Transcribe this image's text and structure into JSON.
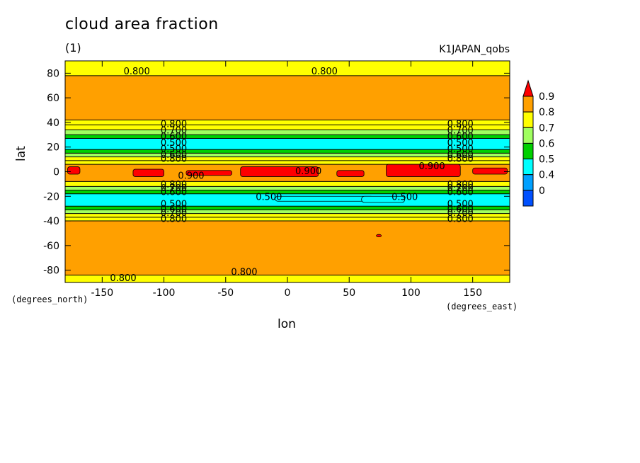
{
  "chart_data": {
    "type": "heatmap",
    "title": "cloud area fraction",
    "subtitle": "(1)",
    "source_label": "K1JAPAN_qobs",
    "xlabel": "lon",
    "ylabel": "lat",
    "x_units": "(degrees_east)",
    "y_units": "(degrees_north)",
    "xlim": [
      -180,
      180
    ],
    "ylim": [
      -90,
      90
    ],
    "x_ticks": [
      -150,
      -100,
      -50,
      0,
      50,
      100,
      150
    ],
    "y_ticks": [
      -80,
      -60,
      -40,
      -20,
      0,
      20,
      40,
      60,
      80
    ],
    "x_tick_labels": [
      "-150",
      "-100",
      "-50",
      "0",
      "50",
      "100",
      "150"
    ],
    "y_tick_labels": [
      "-80",
      "-60",
      "-40",
      "-20",
      "0",
      "20",
      "40",
      "60",
      "80"
    ],
    "levels": [
      0,
      0.4,
      0.5,
      0.6,
      0.7,
      0.8,
      0.9
    ],
    "level_labels": [
      "0",
      "0.4",
      "0.5",
      "0.6",
      "0.7",
      "0.8",
      "0.9"
    ],
    "level_colors": [
      "#0050ff",
      "#00a0ff",
      "#00ffff",
      "#00d000",
      "#a0ff60",
      "#ffff00",
      "#ffa000",
      "#ff0000"
    ],
    "zonal_profile": [
      {
        "lat_range": [
          78,
          90
        ],
        "value": 0.78
      },
      {
        "lat_range": [
          42,
          78
        ],
        "value": 0.85
      },
      {
        "lat_range": [
          38,
          42
        ],
        "value": 0.75
      },
      {
        "lat_range": [
          34,
          38
        ],
        "value": 0.72
      },
      {
        "lat_range": [
          30,
          34
        ],
        "value": 0.65
      },
      {
        "lat_range": [
          27,
          30
        ],
        "value": 0.55
      },
      {
        "lat_range": [
          18,
          27
        ],
        "value": 0.45
      },
      {
        "lat_range": [
          15,
          18
        ],
        "value": 0.55
      },
      {
        "lat_range": [
          12,
          15
        ],
        "value": 0.65
      },
      {
        "lat_range": [
          9,
          12
        ],
        "value": 0.72
      },
      {
        "lat_range": [
          6,
          9
        ],
        "value": 0.78
      },
      {
        "lat_range": [
          -8,
          6
        ],
        "value": 0.85
      },
      {
        "lat_range": [
          -12,
          -8
        ],
        "value": 0.78
      },
      {
        "lat_range": [
          -15,
          -12
        ],
        "value": 0.65
      },
      {
        "lat_range": [
          -18,
          -15
        ],
        "value": 0.55
      },
      {
        "lat_range": [
          -28,
          -18
        ],
        "value": 0.45
      },
      {
        "lat_range": [
          -31,
          -28
        ],
        "value": 0.55
      },
      {
        "lat_range": [
          -34,
          -31
        ],
        "value": 0.65
      },
      {
        "lat_range": [
          -37,
          -34
        ],
        "value": 0.72
      },
      {
        "lat_range": [
          -40,
          -37
        ],
        "value": 0.78
      },
      {
        "lat_range": [
          -84,
          -40
        ],
        "value": 0.85
      },
      {
        "lat_range": [
          -90,
          -84
        ],
        "value": 0.78
      }
    ],
    "high_patches": [
      {
        "lon": [
          -178,
          -168
        ],
        "lat": [
          -2,
          4
        ],
        "value": 0.92
      },
      {
        "lon": [
          -125,
          -100
        ],
        "lat": [
          -4,
          2
        ],
        "value": 0.92
      },
      {
        "lon": [
          -82,
          -45
        ],
        "lat": [
          -3,
          1
        ],
        "value": 0.92
      },
      {
        "lon": [
          -38,
          25
        ],
        "lat": [
          -4,
          4
        ],
        "value": 0.92
      },
      {
        "lon": [
          40,
          62
        ],
        "lat": [
          -4,
          1
        ],
        "value": 0.92
      },
      {
        "lon": [
          80,
          140
        ],
        "lat": [
          -4,
          6
        ],
        "value": 0.93
      },
      {
        "lon": [
          150,
          178
        ],
        "lat": [
          -2,
          3
        ],
        "value": 0.91
      },
      {
        "lon": [
          72,
          76
        ],
        "lat": [
          -53,
          -51
        ],
        "value": 0.91
      }
    ],
    "low_patches": [
      {
        "lon": [
          -10,
          70
        ],
        "lat": [
          -24,
          -20
        ],
        "value": 0.45
      },
      {
        "lon": [
          60,
          95
        ],
        "lat": [
          -25,
          -20
        ],
        "value": 0.42
      }
    ],
    "contour_labels": [
      {
        "lon": -122,
        "lat": 82,
        "text": "0.800"
      },
      {
        "lon": 30,
        "lat": 82,
        "text": "0.800"
      },
      {
        "lon": -92,
        "lat": 39,
        "text": "0.800"
      },
      {
        "lon": 140,
        "lat": 39,
        "text": "0.800"
      },
      {
        "lon": -92,
        "lat": 34,
        "text": "0.700"
      },
      {
        "lon": 140,
        "lat": 34,
        "text": "0.700"
      },
      {
        "lon": -92,
        "lat": 29,
        "text": "0.600"
      },
      {
        "lon": 140,
        "lat": 29,
        "text": "0.600"
      },
      {
        "lon": -92,
        "lat": 24,
        "text": "0.500"
      },
      {
        "lon": 140,
        "lat": 24,
        "text": "0.500"
      },
      {
        "lon": -92,
        "lat": 19,
        "text": "0.500"
      },
      {
        "lon": 140,
        "lat": 19,
        "text": "0.500"
      },
      {
        "lon": -92,
        "lat": 14,
        "text": "0.600"
      },
      {
        "lon": 140,
        "lat": 14,
        "text": "0.600"
      },
      {
        "lon": -92,
        "lat": 11,
        "text": "0.800"
      },
      {
        "lon": 140,
        "lat": 11,
        "text": "0.800"
      },
      {
        "lon": -78,
        "lat": -3,
        "text": "0.900"
      },
      {
        "lon": 17,
        "lat": 1,
        "text": "0.900"
      },
      {
        "lon": 117,
        "lat": 5,
        "text": "0.900"
      },
      {
        "lon": -92,
        "lat": -10,
        "text": "0.800"
      },
      {
        "lon": 140,
        "lat": -10,
        "text": "0.800"
      },
      {
        "lon": -92,
        "lat": -13,
        "text": "0.700"
      },
      {
        "lon": 140,
        "lat": -13,
        "text": "0.700"
      },
      {
        "lon": -92,
        "lat": -16,
        "text": "0.600"
      },
      {
        "lon": 140,
        "lat": -16,
        "text": "0.600"
      },
      {
        "lon": -15,
        "lat": -20,
        "text": "0.500"
      },
      {
        "lon": 95,
        "lat": -20,
        "text": "0.500"
      },
      {
        "lon": -92,
        "lat": -26,
        "text": "0.500"
      },
      {
        "lon": 140,
        "lat": -26,
        "text": "0.500"
      },
      {
        "lon": -92,
        "lat": -30,
        "text": "0.600"
      },
      {
        "lon": 140,
        "lat": -30,
        "text": "0.600"
      },
      {
        "lon": -92,
        "lat": -33,
        "text": "0.700"
      },
      {
        "lon": 140,
        "lat": -33,
        "text": "0.700"
      },
      {
        "lon": -92,
        "lat": -38,
        "text": "0.800"
      },
      {
        "lon": 140,
        "lat": -38,
        "text": "0.800"
      },
      {
        "lon": -35,
        "lat": -81,
        "text": "0.800"
      },
      {
        "lon": -133,
        "lat": -86,
        "text": "0.800"
      }
    ]
  }
}
